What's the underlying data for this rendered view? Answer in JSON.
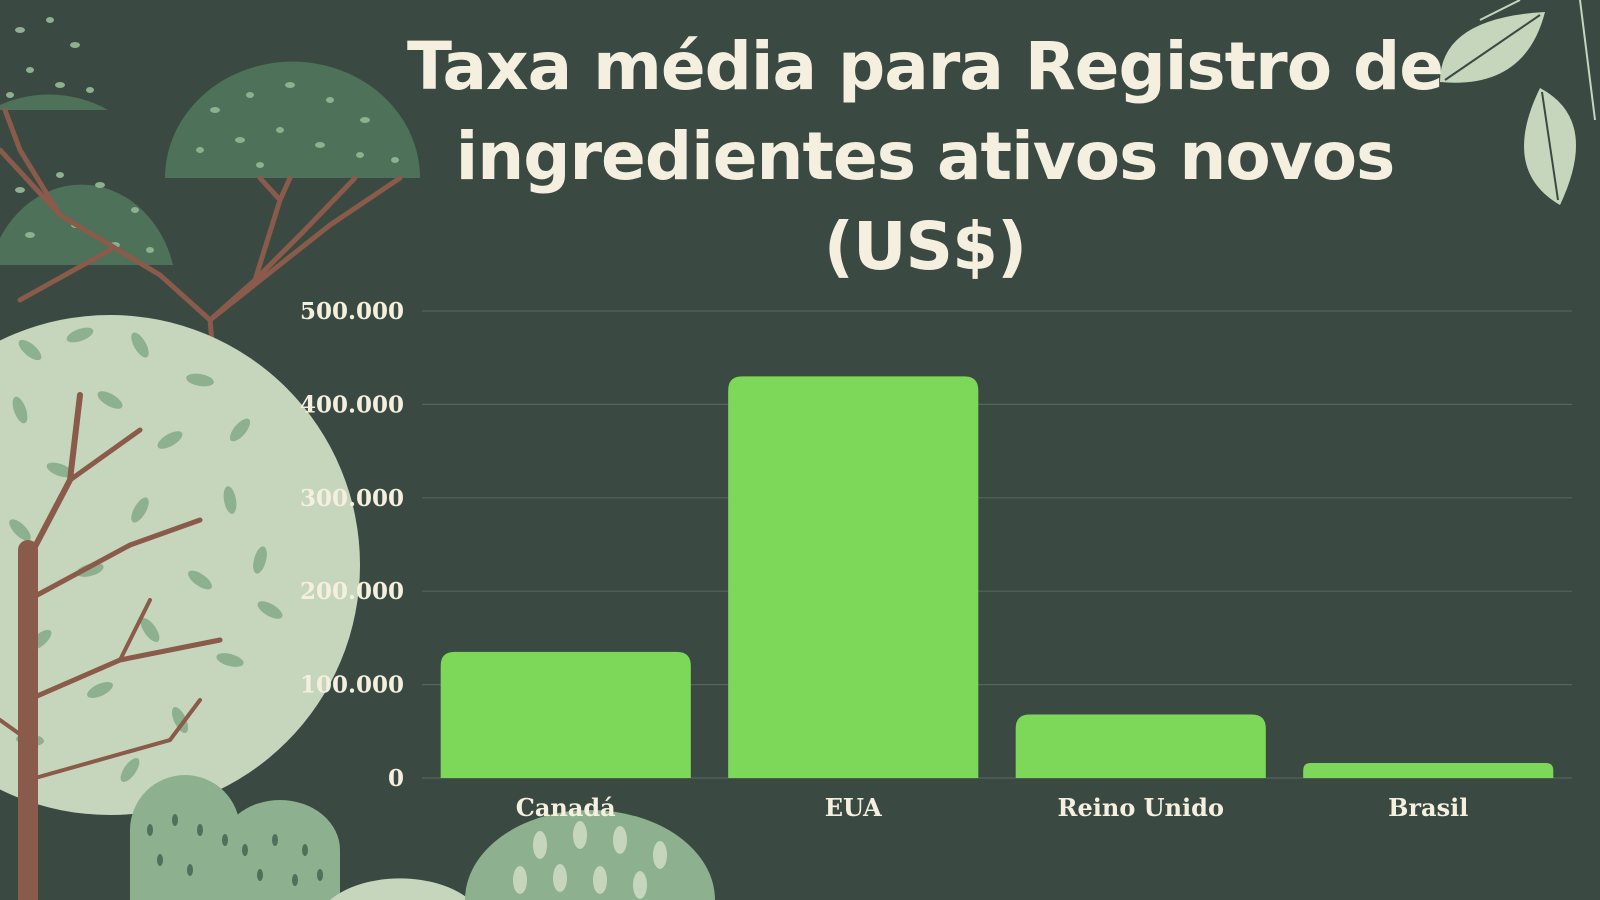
{
  "colors": {
    "background": "#3a4a42",
    "bar": "#7dd859",
    "text": "#f5efe0",
    "grid": "#55655c"
  },
  "chart_data": {
    "type": "bar",
    "title": "Taxa média para Registro de ingredientes ativos novos (US$)",
    "categories": [
      "Canadá",
      "EUA",
      "Reino Unido",
      "Brasil"
    ],
    "values": [
      135000,
      430000,
      68000,
      16000
    ],
    "ylim": [
      0,
      500000
    ],
    "yticks": [
      0,
      100000,
      200000,
      300000,
      400000,
      500000
    ],
    "ytick_labels": [
      "0",
      "100.000",
      "200.000",
      "300.000",
      "400.000",
      "500.000"
    ],
    "xlabel": "",
    "ylabel": "",
    "grid": true,
    "legend": "none"
  }
}
